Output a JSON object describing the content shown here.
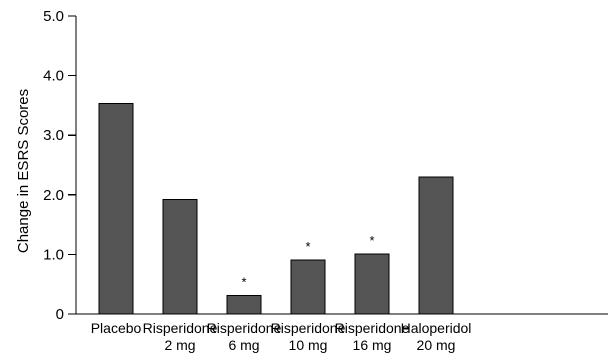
{
  "chart_data": {
    "type": "bar",
    "title": "",
    "ylabel": "Change in ESRS Scores",
    "xlabel": "",
    "ylim": [
      0,
      5.0
    ],
    "yticks": [
      "0",
      "1.0",
      "2.0",
      "3.0",
      "4.0",
      "5.0"
    ],
    "categories": [
      [
        "Placebo"
      ],
      [
        "Risperidone",
        "2 mg"
      ],
      [
        "Risperidone",
        "6 mg"
      ],
      [
        "Risperidone",
        "10 mg"
      ],
      [
        "Risperidone",
        "16 mg"
      ],
      [
        "Haloperidol",
        "20 mg"
      ]
    ],
    "values": [
      3.53,
      1.92,
      0.31,
      0.91,
      1.01,
      2.3
    ],
    "significance_marks": [
      "",
      "",
      "*",
      "*",
      "*",
      ""
    ],
    "bar_color": "#555555",
    "grid": false,
    "legend": "none"
  }
}
